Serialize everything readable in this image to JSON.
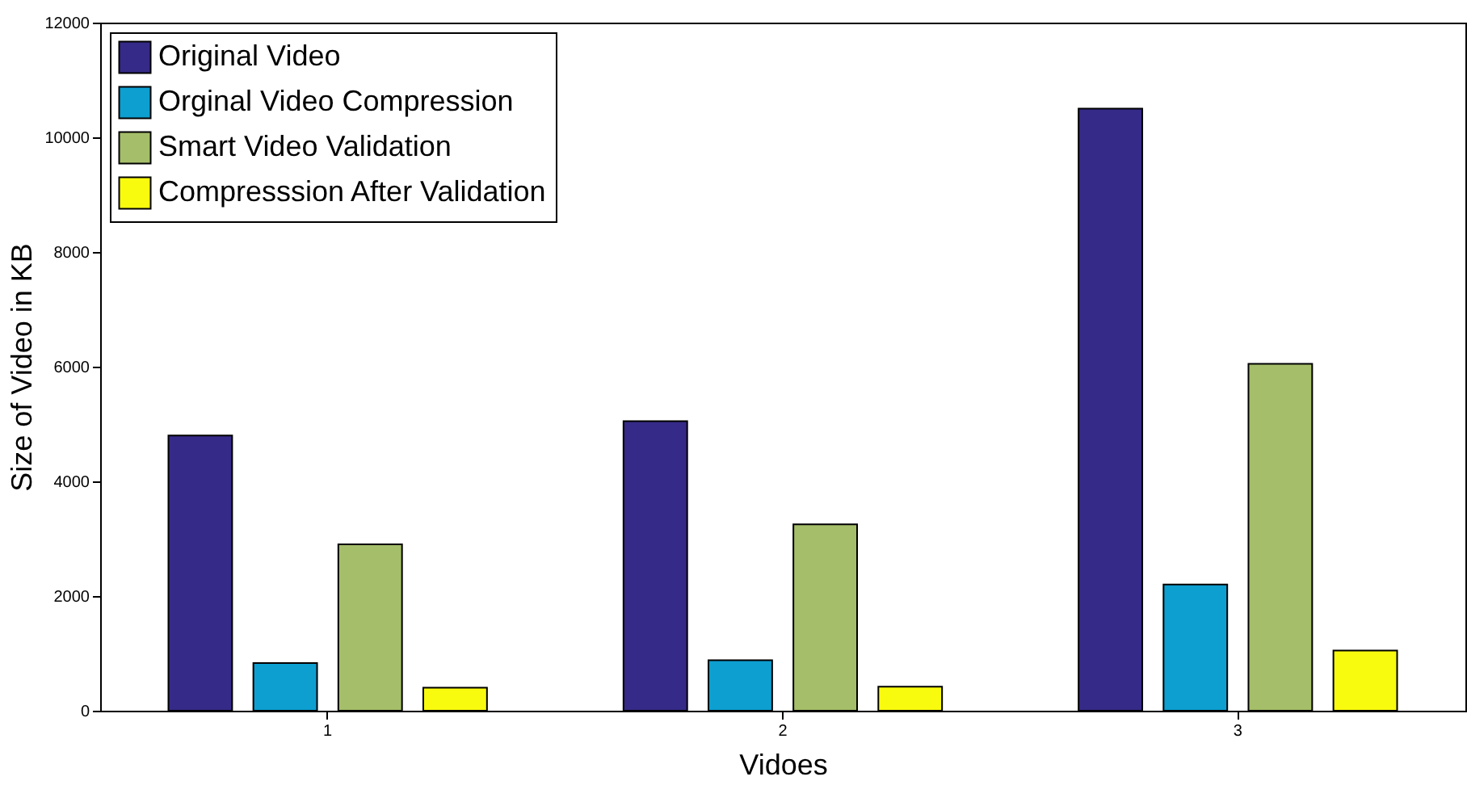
{
  "chart_data": {
    "type": "bar",
    "xlabel": "Vidoes",
    "ylabel": "Size of Video in KB",
    "categories": [
      "1",
      "2",
      "3"
    ],
    "series": [
      {
        "name": "Original Video",
        "color": "#352a87",
        "values": [
          4800,
          5050,
          10500
        ]
      },
      {
        "name": "Orginal Video Compression",
        "color": "#0d9fd0",
        "values": [
          830,
          880,
          2200
        ]
      },
      {
        "name": "Smart Video Validation",
        "color": "#a5be6a",
        "values": [
          2900,
          3250,
          6050
        ]
      },
      {
        "name": "Compresssion After Validation",
        "color": "#f9fb0e",
        "values": [
          400,
          420,
          1050
        ]
      }
    ],
    "ylim": [
      0,
      12000
    ],
    "yticks": [
      0,
      2000,
      4000,
      6000,
      8000,
      10000,
      12000
    ],
    "grid": false,
    "legend": "top left"
  }
}
